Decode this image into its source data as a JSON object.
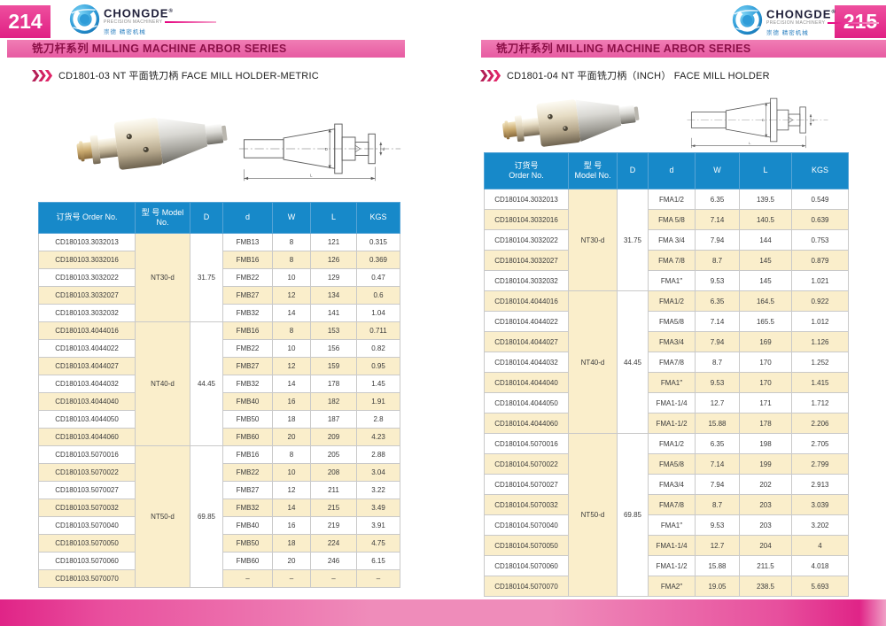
{
  "colors": {
    "header_blue": "#1789c9",
    "row_cream": "#faeecb",
    "page_number_pink": "#e01f84",
    "banner_pink": "#ec6ca9",
    "banner_text": "#8c1048",
    "chevron_red": "#d6215f",
    "footer_edge": "#e02487",
    "footer_mid": "#ef8cba",
    "logo_blue": "#1b8ed0"
  },
  "pages": [
    {
      "page_number": "214",
      "logo": {
        "brand": "CHONGDE",
        "reg": "®",
        "tagline": "PRECISION MACHINERY",
        "chinese": "崇德 精密机械"
      },
      "banner": "铣刀杆系列  MILLING MACHINE ARBOR SERIES",
      "section_title": "CD1801-03 NT 平面铣刀柄 FACE MILL HOLDER-METRIC",
      "table": {
        "stacked_header": false,
        "headers": [
          {
            "zh": "订货号",
            "en": "Order No."
          },
          {
            "zh": "型 号",
            "en": "Model No."
          },
          {
            "en": "D"
          },
          {
            "en": "d"
          },
          {
            "en": "W"
          },
          {
            "en": "L"
          },
          {
            "en": "KGS"
          }
        ],
        "groups": [
          {
            "model": "NT30-d",
            "D": "31.75",
            "rows": [
              [
                "CD180103.3032013",
                "FMB13",
                "8",
                "121",
                "0.315"
              ],
              [
                "CD180103.3032016",
                "FMB16",
                "8",
                "126",
                "0.369"
              ],
              [
                "CD180103.3032022",
                "FMB22",
                "10",
                "129",
                "0.47"
              ],
              [
                "CD180103.3032027",
                "FMB27",
                "12",
                "134",
                "0.6"
              ],
              [
                "CD180103.3032032",
                "FMB32",
                "14",
                "141",
                "1.04"
              ]
            ]
          },
          {
            "model": "NT40-d",
            "D": "44.45",
            "rows": [
              [
                "CD180103.4044016",
                "FMB16",
                "8",
                "153",
                "0.711"
              ],
              [
                "CD180103.4044022",
                "FMB22",
                "10",
                "156",
                "0.82"
              ],
              [
                "CD180103.4044027",
                "FMB27",
                "12",
                "159",
                "0.95"
              ],
              [
                "CD180103.4044032",
                "FMB32",
                "14",
                "178",
                "1.45"
              ],
              [
                "CD180103.4044040",
                "FMB40",
                "16",
                "182",
                "1.91"
              ],
              [
                "CD180103.4044050",
                "FMB50",
                "18",
                "187",
                "2.8"
              ],
              [
                "CD180103.4044060",
                "FMB60",
                "20",
                "209",
                "4.23"
              ]
            ]
          },
          {
            "model": "NT50-d",
            "D": "69.85",
            "rows": [
              [
                "CD180103.5070016",
                "FMB16",
                "8",
                "205",
                "2.88"
              ],
              [
                "CD180103.5070022",
                "FMB22",
                "10",
                "208",
                "3.04"
              ],
              [
                "CD180103.5070027",
                "FMB27",
                "12",
                "211",
                "3.22"
              ],
              [
                "CD180103.5070032",
                "FMB32",
                "14",
                "215",
                "3.49"
              ],
              [
                "CD180103.5070040",
                "FMB40",
                "16",
                "219",
                "3.91"
              ],
              [
                "CD180103.5070050",
                "FMB50",
                "18",
                "224",
                "4.75"
              ],
              [
                "CD180103.5070060",
                "FMB60",
                "20",
                "246",
                "6.15"
              ],
              [
                "CD180103.5070070",
                "–",
                "–",
                "–",
                "–"
              ]
            ]
          }
        ]
      }
    },
    {
      "page_number": "215",
      "logo": {
        "brand": "CHONGDE",
        "reg": "®",
        "tagline": "PRECISION MACHINERY",
        "chinese": "崇德 精密机械"
      },
      "banner": "铣刀杆系列  MILLING MACHINE ARBOR SERIES",
      "section_title": "CD1801-04 NT 平面铣刀柄（INCH）  FACE MILL HOLDER",
      "table": {
        "stacked_header": true,
        "headers": [
          {
            "zh": "订货号",
            "en": "Order No."
          },
          {
            "zh": "型 号",
            "en": "Model No."
          },
          {
            "en": "D"
          },
          {
            "en": "d"
          },
          {
            "en": "W"
          },
          {
            "en": "L"
          },
          {
            "en": "KGS"
          }
        ],
        "groups": [
          {
            "model": "NT30-d",
            "D": "31.75",
            "rows": [
              [
                "CD180104.3032013",
                "FMA1/2",
                "6.35",
                "139.5",
                "0.549"
              ],
              [
                "CD180104.3032016",
                "FMA 5/8",
                "7.14",
                "140.5",
                "0.639"
              ],
              [
                "CD180104.3032022",
                "FMA 3/4",
                "7.94",
                "144",
                "0.753"
              ],
              [
                "CD180104.3032027",
                "FMA 7/8",
                "8.7",
                "145",
                "0.879"
              ],
              [
                "CD180104.3032032",
                "FMA1″",
                "9.53",
                "145",
                "1.021"
              ]
            ]
          },
          {
            "model": "NT40-d",
            "D": "44.45",
            "rows": [
              [
                "CD180104.4044016",
                "FMA1/2",
                "6.35",
                "164.5",
                "0.922"
              ],
              [
                "CD180104.4044022",
                "FMA5/8",
                "7.14",
                "165.5",
                "1.012"
              ],
              [
                "CD180104.4044027",
                "FMA3/4",
                "7.94",
                "169",
                "1.126"
              ],
              [
                "CD180104.4044032",
                "FMA7/8",
                "8.7",
                "170",
                "1.252"
              ],
              [
                "CD180104.4044040",
                "FMA1″",
                "9.53",
                "170",
                "1.415"
              ],
              [
                "CD180104.4044050",
                "FMA1-1/4",
                "12.7",
                "171",
                "1.712"
              ],
              [
                "CD180104.4044060",
                "FMA1-1/2",
                "15.88",
                "178",
                "2.206"
              ]
            ]
          },
          {
            "model": "NT50-d",
            "D": "69.85",
            "rows": [
              [
                "CD180104.5070016",
                "FMA1/2",
                "6.35",
                "198",
                "2.705"
              ],
              [
                "CD180104.5070022",
                "FMA5/8",
                "7.14",
                "199",
                "2.799"
              ],
              [
                "CD180104.5070027",
                "FMA3/4",
                "7.94",
                "202",
                "2.913"
              ],
              [
                "CD180104.5070032",
                "FMA7/8",
                "8.7",
                "203",
                "3.039"
              ],
              [
                "CD180104.5070040",
                "FMA1″",
                "9.53",
                "203",
                "3.202"
              ],
              [
                "CD180104.5070050",
                "FMA1-1/4",
                "12.7",
                "204",
                "4"
              ],
              [
                "CD180104.5070060",
                "FMA1-1/2",
                "15.88",
                "211.5",
                "4.018"
              ],
              [
                "CD180104.5070070",
                "FMA2″",
                "19.05",
                "238.5",
                "5.693"
              ]
            ]
          }
        ]
      }
    }
  ]
}
